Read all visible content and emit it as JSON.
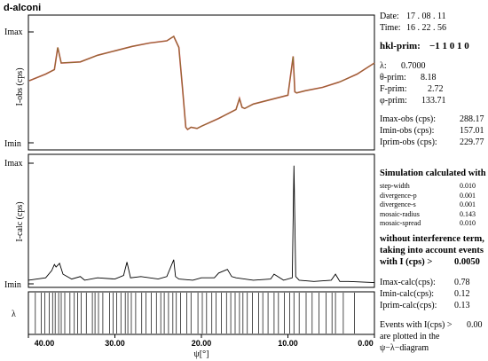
{
  "chart_data": [
    {
      "type": "line",
      "panel": "observed",
      "ylabel": "I-obs (cps)",
      "y_ticks": [
        "Imax",
        "Imin"
      ],
      "xlim": [
        40.0,
        0.0
      ],
      "series": [
        {
          "x": [
            39.9,
            38,
            37,
            36.6,
            36.2,
            34,
            32,
            30,
            28,
            26,
            24,
            23.2,
            22.6,
            22.2,
            21.8,
            21.6,
            21.2,
            20.5,
            20,
            18,
            16,
            15.6,
            15.3,
            15,
            14,
            12,
            10,
            9.4,
            9.2,
            9,
            8,
            6,
            4,
            2,
            0
          ],
          "y": [
            0.56,
            0.62,
            0.66,
            0.86,
            0.72,
            0.73,
            0.79,
            0.83,
            0.87,
            0.9,
            0.92,
            0.96,
            0.86,
            0.5,
            0.14,
            0.12,
            0.14,
            0.13,
            0.15,
            0.22,
            0.3,
            0.4,
            0.32,
            0.31,
            0.35,
            0.39,
            0.43,
            0.78,
            0.46,
            0.45,
            0.47,
            0.5,
            0.55,
            0.62,
            0.72
          ],
          "color": "#c94040"
        }
      ]
    },
    {
      "type": "line",
      "panel": "calculated",
      "ylabel": "I-calc (cps)",
      "y_ticks": [
        "Imax",
        "Imin"
      ],
      "xlim": [
        40.0,
        0.0
      ],
      "series": [
        {
          "x": [
            40,
            38,
            37.3,
            37,
            36.8,
            36.4,
            36,
            35,
            34,
            33.5,
            32,
            30,
            29,
            28.6,
            28.2,
            27,
            25,
            24,
            23.2,
            23,
            22.6,
            21,
            20,
            18.5,
            18,
            17,
            16.5,
            16,
            14,
            12,
            11.6,
            10.5,
            9.5,
            9.3,
            9.1,
            8.7,
            7,
            5,
            4.5,
            4,
            3,
            0
          ],
          "y": [
            0.03,
            0.05,
            0.11,
            0.16,
            0.14,
            0.17,
            0.08,
            0.04,
            0.06,
            0.03,
            0.05,
            0.04,
            0.07,
            0.18,
            0.05,
            0.06,
            0.04,
            0.06,
            0.2,
            0.06,
            0.04,
            0.03,
            0.05,
            0.05,
            0.09,
            0.12,
            0.06,
            0.05,
            0.03,
            0.04,
            0.08,
            0.03,
            0.05,
            0.98,
            0.06,
            0.03,
            0.02,
            0.03,
            0.08,
            0.02,
            0.02,
            0.01
          ],
          "color": "#000000"
        }
      ]
    },
    {
      "type": "scatter",
      "panel": "lambda-events",
      "ylabel": "λ",
      "xlabel": "ψ[°]",
      "xlim": [
        40.0,
        0.0
      ],
      "x_ticks": [
        "40.00",
        "30.00",
        "20.00",
        "10.00",
        "0.00"
      ],
      "event_positions": [
        39.2,
        38.5,
        38.1,
        37.6,
        37.2,
        36.9,
        36.5,
        36.2,
        35.8,
        35.2,
        34.7,
        34.3,
        33.9,
        33.3,
        32.6,
        32.3,
        31.9,
        31.4,
        30.6,
        30.2,
        29.8,
        29.3,
        28.8,
        28.5,
        28.1,
        27.6,
        26.9,
        26.4,
        25.8,
        25.2,
        24.7,
        24.3,
        23.8,
        23.3,
        22.9,
        22.4,
        21.7,
        21.2,
        20.4,
        19.9,
        19.4,
        18.8,
        18.3,
        17.7,
        17.1,
        16.6,
        16.1,
        15.6,
        15.2,
        14.7,
        14.1,
        13.4,
        12.9,
        12.3,
        11.6,
        11.1,
        10.4,
        9.8,
        9.3,
        8.7,
        7.9,
        7.2,
        6.4,
        5.6,
        4.9,
        4.5,
        3.6,
        2.3
      ]
    }
  ],
  "figure": {
    "title": "d-alconi"
  },
  "panel": {
    "date_label": "Date:",
    "date_value": "17 . 08 . 11",
    "time_label": "Time:",
    "time_value": "16 . 22 . 56",
    "hkl_label": "hkl-prim:",
    "hkl_value": "−1  1  0  1  0",
    "lambda_label": "λ:",
    "lambda_value": "0.7000",
    "theta_label": "θ-prim:",
    "theta_value": "8.18",
    "f_label": "F-prim:",
    "f_value": "2.72",
    "psi_label": "φ-prim:",
    "psi_value": "133.71",
    "imax_obs_label": "Imax-obs (cps):",
    "imax_obs_value": "288.17",
    "imin_obs_label": "Imin-obs (cps):",
    "imin_obs_value": "157.01",
    "iprim_obs_label": "Iprim-obs (cps):",
    "iprim_obs_value": "229.77",
    "sim_heading": "Simulation calculated with",
    "params": [
      {
        "name": "step-width",
        "value": "0.010"
      },
      {
        "name": "divergence-p",
        "value": "0.001"
      },
      {
        "name": "divergence-s",
        "value": "0.001"
      },
      {
        "name": "mosaic-radius",
        "value": "0.143"
      },
      {
        "name": "mosaic-spread",
        "value": "0.010"
      }
    ],
    "note_line1": "without interference term,",
    "note_line2": "taking into account events",
    "note_line3_prefix": "with I (cps) >",
    "note_line3_value": "0.0050",
    "imax_calc_label": "Imax-calc(cps):",
    "imax_calc_value": "0.78",
    "imin_calc_label": "Imin-calc(cps):",
    "imin_calc_value": "0.12",
    "iprim_calc_label": "Iprim-calc(cps):",
    "iprim_calc_value": "0.13",
    "events_label": "Events with I(cps) >",
    "events_value": "0.00",
    "plotted_line1": "are plotted in the",
    "plotted_line2": "ψ−λ−diagram"
  }
}
